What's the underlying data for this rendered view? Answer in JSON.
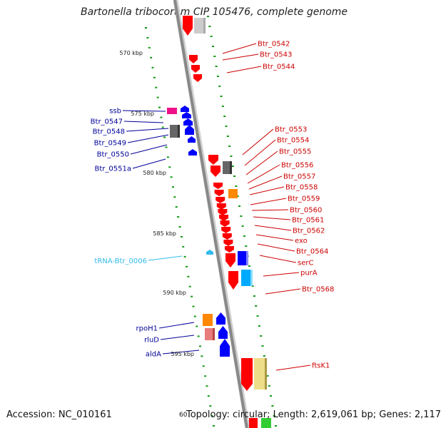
{
  "title": "Bartonella tribocorum CIP 105476, complete genome",
  "footer": {
    "accession": "Accession: NC_010161",
    "topology": "Topology: circular; Length: 2,619,061 bp; Genes: 2,117",
    "cut_label": "60"
  },
  "colors": {
    "forward_cds": "#ff0000",
    "reverse_cds": "#0000ff",
    "forward_label": "#cc0000",
    "reverse_label": "#000099",
    "trna": "#33bbee",
    "orange_feature": "#ff8800",
    "grey_feature": "#666666",
    "light_feature": "#cccccc",
    "cyan_feature": "#00aaff",
    "pink_feature": "#e87b7b",
    "magenta_feature": "#ee1188",
    "yellow_feature": "#eedd88",
    "green_feature": "#33cc33",
    "gc_dots": "#119911",
    "backbone": "#888888"
  },
  "scale": [
    "570 kbp",
    "575 kbp",
    "580 kbp",
    "585 kbp",
    "590 kbp",
    "595 kbp"
  ],
  "forward_genes": [
    "Btr_0542",
    "Btr_0543",
    "Btr_0544",
    "Btr_0553",
    "Btr_0554",
    "Btr_0555",
    "Btr_0556",
    "Btr_0557",
    "Btr_0558",
    "Btr_0559",
    "Btr_0560",
    "Btr_0561",
    "Btr_0562",
    "exo",
    "Btr_0564",
    "serC",
    "purA",
    "Btr_0568",
    "ftsK1"
  ],
  "reverse_genes": [
    "ssb",
    "Btr_0547",
    "Btr_0548",
    "Btr_0549",
    "Btr_0550",
    "Btr_0551a",
    "rpoH1",
    "rluD",
    "aldA"
  ],
  "trna_genes": [
    "tRNA-Btr_0006"
  ]
}
